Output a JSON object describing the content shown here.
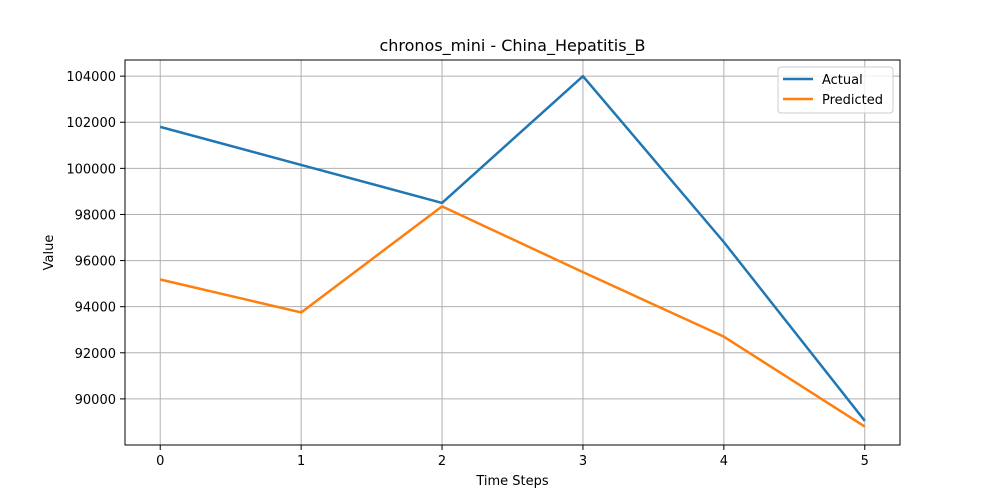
{
  "chart_data": {
    "type": "line",
    "title": "chronos_mini - China_Hepatitis_B",
    "xlabel": "Time Steps",
    "ylabel": "Value",
    "x": [
      0,
      1,
      2,
      3,
      4,
      5
    ],
    "xticks": [
      "0",
      "1",
      "2",
      "3",
      "4",
      "5"
    ],
    "yticks": [
      "90000",
      "92000",
      "94000",
      "96000",
      "98000",
      "100000",
      "102000",
      "104000"
    ],
    "xlim": [
      -0.25,
      5.25
    ],
    "ylim": [
      88000,
      104700
    ],
    "grid": true,
    "legend_position": "top-right",
    "series": [
      {
        "name": "Actual",
        "color": "#1f77b4",
        "values": [
          101800,
          100150,
          98500,
          104000,
          96800,
          89050
        ]
      },
      {
        "name": "Predicted",
        "color": "#ff7f0e",
        "values": [
          95180,
          93750,
          98350,
          95500,
          92700,
          88800
        ]
      }
    ]
  }
}
